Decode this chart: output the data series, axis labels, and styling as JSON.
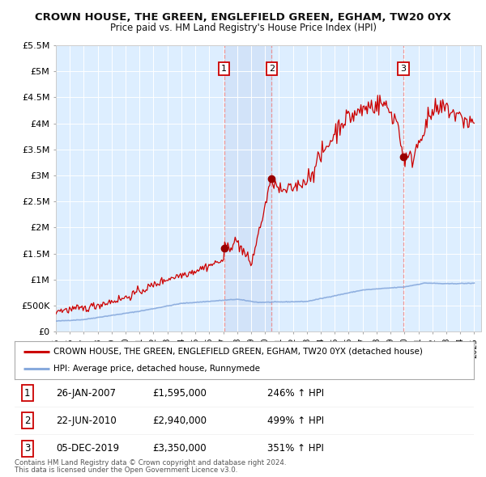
{
  "title": "CROWN HOUSE, THE GREEN, ENGLEFIELD GREEN, EGHAM, TW20 0YX",
  "subtitle": "Price paid vs. HM Land Registry's House Price Index (HPI)",
  "legend_line1": "CROWN HOUSE, THE GREEN, ENGLEFIELD GREEN, EGHAM, TW20 0YX (detached house)",
  "legend_line2": "HPI: Average price, detached house, Runnymede",
  "footer1": "Contains HM Land Registry data © Crown copyright and database right 2024.",
  "footer2": "This data is licensed under the Open Government Licence v3.0.",
  "sales": [
    {
      "num": 1,
      "date": "26-JAN-2007",
      "price": "£1,595,000",
      "pct": "246% ↑ HPI",
      "year": 2007.07
    },
    {
      "num": 2,
      "date": "22-JUN-2010",
      "price": "£2,940,000",
      "pct": "499% ↑ HPI",
      "year": 2010.47
    },
    {
      "num": 3,
      "date": "05-DEC-2019",
      "price": "£3,350,000",
      "pct": "351% ↑ HPI",
      "year": 2019.92
    }
  ],
  "sale_values": [
    1595000,
    2940000,
    3350000
  ],
  "ylim": [
    0,
    5500000
  ],
  "xlim": [
    1995.0,
    2025.5
  ],
  "yticks": [
    0,
    500000,
    1000000,
    1500000,
    2000000,
    2500000,
    3000000,
    3500000,
    4000000,
    4500000,
    5000000,
    5500000
  ],
  "ytick_labels": [
    "£0",
    "£500K",
    "£1M",
    "£1.5M",
    "£2M",
    "£2.5M",
    "£3M",
    "£3.5M",
    "£4M",
    "£4.5M",
    "£5M",
    "£5.5M"
  ],
  "xticks": [
    1995,
    1996,
    1997,
    1998,
    1999,
    2000,
    2001,
    2002,
    2003,
    2004,
    2005,
    2006,
    2007,
    2008,
    2009,
    2010,
    2011,
    2012,
    2013,
    2014,
    2015,
    2016,
    2017,
    2018,
    2019,
    2020,
    2021,
    2022,
    2023,
    2024,
    2025
  ],
  "property_color": "#cc0000",
  "hpi_color": "#88aadd",
  "background_color": "#ffffff",
  "plot_bg_color": "#ddeeff",
  "grid_color": "#ffffff",
  "vline_color": "#ee8888",
  "sale_marker_color": "#990000",
  "title_fontsize": 9.5,
  "subtitle_fontsize": 8.5
}
